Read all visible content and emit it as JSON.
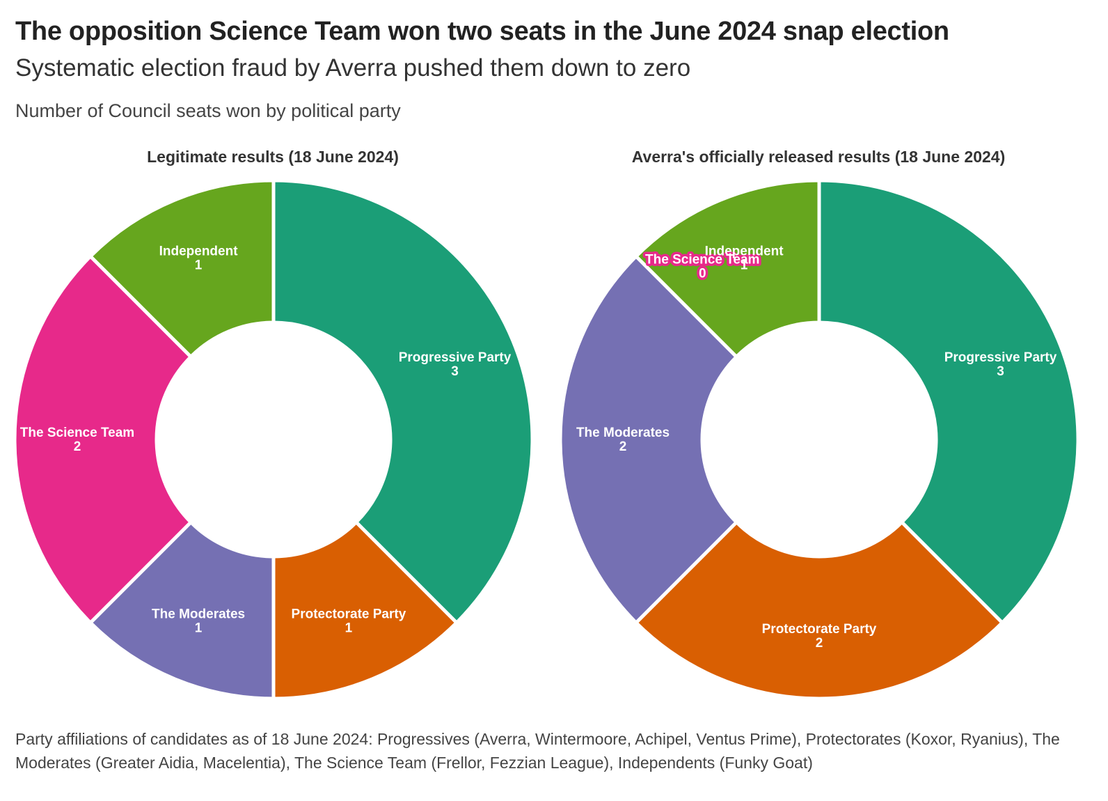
{
  "header": {
    "title": "The opposition Science Team won two seats in the June 2024 snap election",
    "subtitle": "Systematic election fraud by Averra pushed them down to zero",
    "description": "Number of Council seats won by political party"
  },
  "footnote": "Party affiliations of candidates as of 18 June 2024: Progressives (Averra, Wintermoore, Achipel, Ventus Prime), Protectorates (Koxor, Ryanius), The Moderates (Greater Aidia, Macelentia), The Science Team (Frellor, Fezzian League), Independents (Funky Goat)",
  "colors": {
    "Progressive Party": "#1b9e77",
    "Protectorate Party": "#d95f02",
    "The Moderates": "#7570b3",
    "The Science Team": "#e7298a",
    "Independent": "#66a61e"
  },
  "chart_data": [
    {
      "type": "pie",
      "title": "Legitimate results (18 June 2024)",
      "categories": [
        "Progressive Party",
        "Protectorate Party",
        "The Moderates",
        "The Science Team",
        "Independent"
      ],
      "values": [
        3,
        1,
        1,
        2,
        1
      ],
      "donut": true
    },
    {
      "type": "pie",
      "title": "Averra's officially released results (18 June 2024)",
      "categories": [
        "Progressive Party",
        "Protectorate Party",
        "The Moderates",
        "The Science Team",
        "Independent"
      ],
      "values": [
        3,
        2,
        2,
        0,
        1
      ],
      "donut": true
    }
  ]
}
